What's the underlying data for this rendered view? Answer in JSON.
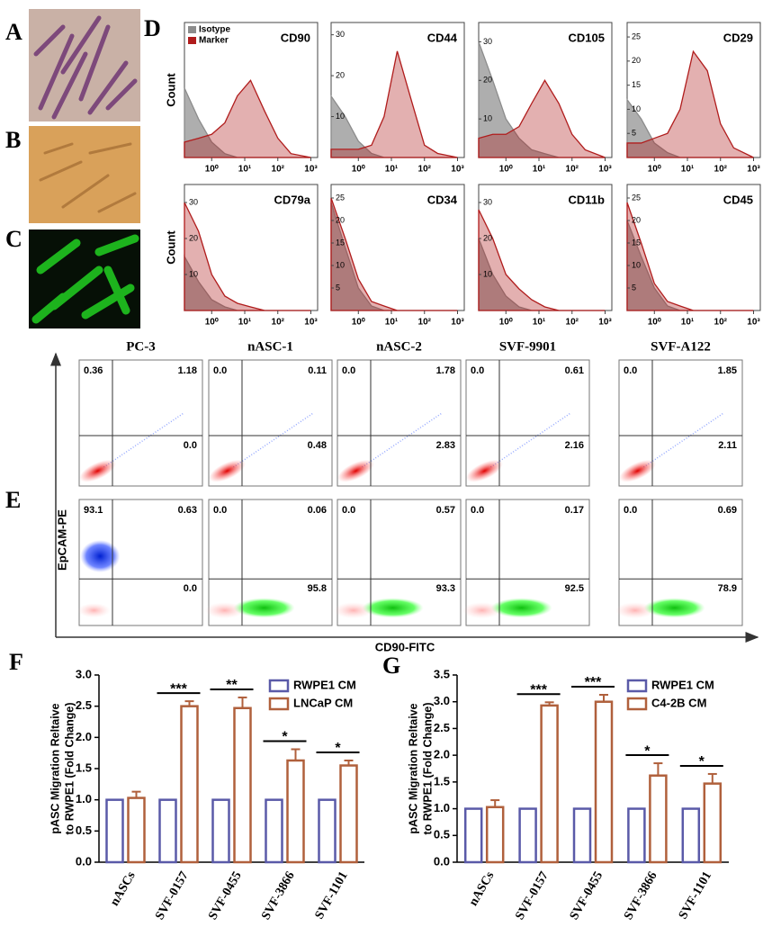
{
  "panel_labels": [
    "A",
    "B",
    "C",
    "D",
    "E",
    "F",
    "G"
  ],
  "chart_data": [
    {
      "type": "area",
      "title": "CD90",
      "ylabel": "Count",
      "legend": "top-left",
      "x": [
        0.15,
        0.4,
        1,
        2.5,
        6,
        15,
        40,
        100,
        250,
        1000
      ],
      "xlim": [
        0.15,
        1600
      ],
      "log_x": true,
      "xticks": [
        {
          "value": 1,
          "label": "10⁰"
        },
        {
          "value": 10,
          "label": "10¹"
        },
        {
          "value": 100,
          "label": "10²"
        },
        {
          "value": 1000,
          "label": "10³"
        }
      ],
      "ylim": [
        0,
        35
      ],
      "yticks": [],
      "series": [
        {
          "name": "Isotype",
          "color": "#8c8c8c",
          "values": [
            18,
            10,
            4,
            1,
            0,
            0,
            0,
            0,
            0,
            0
          ]
        },
        {
          "name": "Marker",
          "color": "#b01c1c",
          "values": [
            4,
            5,
            6,
            9,
            16,
            20,
            12,
            5,
            1,
            0
          ]
        }
      ]
    },
    {
      "type": "area",
      "title": "CD44",
      "x": [
        0.15,
        0.4,
        1,
        2.5,
        6,
        15,
        40,
        100,
        250,
        1000
      ],
      "xlim": [
        0.15,
        1600
      ],
      "log_x": true,
      "xticks": [
        {
          "value": 1,
          "label": "10⁰"
        },
        {
          "value": 10,
          "label": "10¹"
        },
        {
          "value": 100,
          "label": "10²"
        },
        {
          "value": 1000,
          "label": "10³"
        }
      ],
      "ylim": [
        0,
        33
      ],
      "yticks": [
        10,
        20,
        30
      ],
      "series": [
        {
          "color": "#8c8c8c",
          "values": [
            15,
            10,
            4,
            1,
            0,
            0,
            0,
            0,
            0,
            0
          ]
        },
        {
          "color": "#b01c1c",
          "values": [
            2,
            2,
            2,
            3,
            10,
            26,
            14,
            3,
            1,
            0
          ]
        }
      ]
    },
    {
      "type": "area",
      "title": "CD105",
      "x": [
        0.15,
        0.4,
        1,
        2.5,
        6,
        15,
        40,
        100,
        250,
        1000
      ],
      "xlim": [
        0.15,
        1600
      ],
      "log_x": true,
      "xticks": [
        {
          "value": 1,
          "label": "10⁰"
        },
        {
          "value": 10,
          "label": "10¹"
        },
        {
          "value": 100,
          "label": "10²"
        },
        {
          "value": 1000,
          "label": "10³"
        }
      ],
      "ylim": [
        0,
        35
      ],
      "yticks": [
        10,
        20,
        30
      ],
      "series": [
        {
          "color": "#8c8c8c",
          "values": [
            30,
            20,
            10,
            5,
            2,
            1,
            0,
            0,
            0,
            0
          ]
        },
        {
          "color": "#b01c1c",
          "values": [
            5,
            6,
            6,
            8,
            14,
            20,
            14,
            6,
            2,
            0
          ]
        }
      ]
    },
    {
      "type": "area",
      "title": "CD29",
      "x": [
        0.15,
        0.4,
        1,
        2.5,
        6,
        15,
        40,
        100,
        250,
        1000
      ],
      "xlim": [
        0.15,
        1600
      ],
      "log_x": true,
      "xticks": [
        {
          "value": 1,
          "label": "10⁰"
        },
        {
          "value": 10,
          "label": "10¹"
        },
        {
          "value": 100,
          "label": "10²"
        },
        {
          "value": 1000,
          "label": "10³"
        }
      ],
      "ylim": [
        0,
        28
      ],
      "yticks": [
        5,
        10,
        15,
        20,
        25
      ],
      "series": [
        {
          "color": "#8c8c8c",
          "values": [
            12,
            8,
            3,
            1,
            0,
            0,
            0,
            0,
            0,
            0
          ]
        },
        {
          "color": "#b01c1c",
          "values": [
            3,
            3,
            4,
            5,
            10,
            22,
            18,
            7,
            2,
            0
          ]
        }
      ]
    },
    {
      "type": "area",
      "title": "CD79a",
      "ylabel": "Count",
      "x": [
        0.15,
        0.4,
        1,
        2.5,
        6,
        15,
        40,
        100,
        250,
        1000
      ],
      "xlim": [
        0.15,
        1600
      ],
      "log_x": true,
      "xticks": [
        {
          "value": 1,
          "label": "10⁰"
        },
        {
          "value": 10,
          "label": "10¹"
        },
        {
          "value": 100,
          "label": "10²"
        },
        {
          "value": 1000,
          "label": "10³"
        }
      ],
      "ylim": [
        0,
        35
      ],
      "yticks": [
        10,
        20,
        30
      ],
      "series": [
        {
          "color": "#8c8c8c",
          "values": [
            15,
            8,
            3,
            1,
            0,
            0,
            0,
            0,
            0,
            0
          ]
        },
        {
          "color": "#b01c1c",
          "values": [
            30,
            22,
            10,
            4,
            2,
            1,
            0,
            0,
            0,
            0
          ]
        }
      ]
    },
    {
      "type": "area",
      "title": "CD34",
      "x": [
        0.15,
        0.4,
        1,
        2.5,
        6,
        15,
        40,
        100,
        250,
        1000
      ],
      "xlim": [
        0.15,
        1600
      ],
      "log_x": true,
      "xticks": [
        {
          "value": 1,
          "label": "10⁰"
        },
        {
          "value": 10,
          "label": "10¹"
        },
        {
          "value": 100,
          "label": "10²"
        },
        {
          "value": 1000,
          "label": "10³"
        }
      ],
      "ylim": [
        0,
        28
      ],
      "yticks": [
        5,
        10,
        15,
        20,
        25
      ],
      "series": [
        {
          "color": "#8c8c8c",
          "values": [
            24,
            14,
            5,
            1,
            0,
            0,
            0,
            0,
            0,
            0
          ]
        },
        {
          "color": "#b01c1c",
          "values": [
            25,
            16,
            7,
            2,
            1,
            0,
            0,
            0,
            0,
            0
          ]
        }
      ]
    },
    {
      "type": "area",
      "title": "CD11b",
      "x": [
        0.15,
        0.4,
        1,
        2.5,
        6,
        15,
        40,
        100,
        250,
        1000
      ],
      "xlim": [
        0.15,
        1600
      ],
      "log_x": true,
      "xticks": [
        {
          "value": 1,
          "label": "10⁰"
        },
        {
          "value": 10,
          "label": "10¹"
        },
        {
          "value": 100,
          "label": "10²"
        },
        {
          "value": 1000,
          "label": "10³"
        }
      ],
      "ylim": [
        0,
        35
      ],
      "yticks": [
        10,
        20,
        30
      ],
      "series": [
        {
          "color": "#8c8c8c",
          "values": [
            20,
            10,
            4,
            1,
            0,
            0,
            0,
            0,
            0,
            0
          ]
        },
        {
          "color": "#b01c1c",
          "values": [
            28,
            20,
            10,
            6,
            3,
            1,
            0,
            0,
            0,
            0
          ]
        }
      ]
    },
    {
      "type": "area",
      "title": "CD45",
      "x": [
        0.15,
        0.4,
        1,
        2.5,
        6,
        15,
        40,
        100,
        250,
        1000
      ],
      "xlim": [
        0.15,
        1600
      ],
      "log_x": true,
      "xticks": [
        {
          "value": 1,
          "label": "10⁰"
        },
        {
          "value": 10,
          "label": "10¹"
        },
        {
          "value": 100,
          "label": "10²"
        },
        {
          "value": 1000,
          "label": "10³"
        }
      ],
      "ylim": [
        0,
        28
      ],
      "yticks": [
        5,
        10,
        15,
        20,
        25
      ],
      "series": [
        {
          "color": "#8c8c8c",
          "values": [
            20,
            12,
            5,
            1,
            0,
            0,
            0,
            0,
            0,
            0
          ]
        },
        {
          "color": "#b01c1c",
          "values": [
            24,
            15,
            6,
            2,
            1,
            0,
            0,
            0,
            0,
            0
          ]
        }
      ]
    },
    {
      "type": "bar",
      "ylabel": [
        "pASC Migration Reltaive",
        "to RWPE1 (Fold Change)"
      ],
      "legend": "top-right",
      "categories": [
        "nASCs",
        "SVF-0157",
        "SVF-0455",
        "SVF-3866",
        "SVF-1101"
      ],
      "ylim": [
        0,
        3
      ],
      "yticks": [
        {
          "value": 0,
          "label": "0.0"
        },
        {
          "value": 0.5,
          "label": "0.5"
        },
        {
          "value": 1,
          "label": "1.0"
        },
        {
          "value": 1.5,
          "label": "1.5"
        },
        {
          "value": 2,
          "label": "2.0"
        },
        {
          "value": 2.5,
          "label": "2.5"
        },
        {
          "value": 3,
          "label": "3.0"
        }
      ],
      "series": [
        {
          "name": "RWPE1 CM",
          "color": "#5a5aa8",
          "values": [
            1,
            1,
            1,
            1,
            1
          ]
        },
        {
          "name": "LNCaP CM",
          "color": "#b0603c",
          "values": [
            1.03,
            2.5,
            2.47,
            1.63,
            1.55
          ],
          "errors": [
            0.1,
            0.08,
            0.17,
            0.18,
            0.08
          ]
        }
      ],
      "significance": [
        null,
        "***",
        "**",
        "*",
        "*"
      ]
    },
    {
      "type": "bar",
      "ylabel": [
        "pASC Migration Reltaive",
        "to RWPE1 (Fold Change)"
      ],
      "legend": "top-right",
      "categories": [
        "nASCs",
        "SVF-0157",
        "SVF-0455",
        "SVF-3866",
        "SVF-1101"
      ],
      "ylim": [
        0,
        3.5
      ],
      "yticks": [
        {
          "value": 0,
          "label": "0.0"
        },
        {
          "value": 0.5,
          "label": "0.5"
        },
        {
          "value": 1,
          "label": "1.0"
        },
        {
          "value": 1.5,
          "label": "1.5"
        },
        {
          "value": 2,
          "label": "2.0"
        },
        {
          "value": 2.5,
          "label": "2.5"
        },
        {
          "value": 3,
          "label": "3.0"
        },
        {
          "value": 3.5,
          "label": "3.5"
        }
      ],
      "series": [
        {
          "name": "RWPE1 CM",
          "color": "#5a5aa8",
          "values": [
            1,
            1,
            1,
            1,
            1
          ]
        },
        {
          "name": "C4-2B CM",
          "color": "#b0603c",
          "values": [
            1.03,
            2.93,
            3.0,
            1.62,
            1.47
          ],
          "errors": [
            0.13,
            0.06,
            0.13,
            0.23,
            0.18
          ]
        }
      ],
      "significance": [
        null,
        "***",
        "***",
        "*",
        "*"
      ]
    }
  ],
  "flow": {
    "ylabel": "EpCAM-PE",
    "xlabel": "CD90-FITC",
    "columns": [
      "PC-3",
      "nASC-1",
      "nASC-2",
      "SVF-9901",
      "SVF-A122"
    ],
    "quadrants": [
      [
        [
          "0.36",
          "1.18",
          "0.0"
        ],
        [
          "0.0",
          "0.11",
          "0.48"
        ],
        [
          "0.0",
          "1.78",
          "2.83"
        ],
        [
          "0.0",
          "0.61",
          "2.16"
        ],
        [
          "0.0",
          "1.85",
          "2.11"
        ]
      ],
      [
        [
          "93.1",
          "0.63",
          "0.0"
        ],
        [
          "0.0",
          "0.06",
          "95.8"
        ],
        [
          "0.0",
          "0.57",
          "93.3"
        ],
        [
          "0.0",
          "0.17",
          "92.5"
        ],
        [
          "0.0",
          "0.69",
          "78.9"
        ]
      ]
    ]
  }
}
